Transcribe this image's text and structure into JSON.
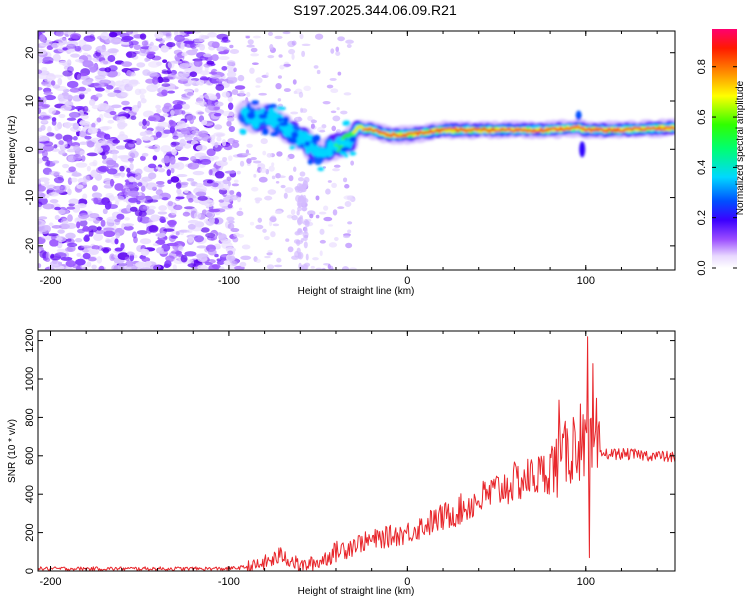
{
  "figure_title": "S197.2025.344.06.09.R21",
  "chart_data": [
    {
      "type": "heatmap",
      "title": "S197.2025.344.06.09.R21",
      "xlabel": "Height of straight line (km)",
      "ylabel": "Frequency (Hz)",
      "xlim": [
        -207,
        150
      ],
      "ylim": [
        -25,
        24.5
      ],
      "xticks": [
        -200,
        -100,
        0,
        100
      ],
      "yticks": [
        -20,
        -10,
        0,
        10,
        20
      ],
      "xtick_labels": [
        "-200",
        "-100",
        "0",
        "100"
      ],
      "ytick_labels": [
        "-20",
        "-10",
        "0",
        "10",
        "20"
      ],
      "grid": false,
      "colorbar": {
        "label": "Normalized spectral amplitude",
        "range": [
          0,
          0.95
        ],
        "ticks": [
          0,
          0.2,
          0.4,
          0.6,
          0.8
        ],
        "tick_labels": [
          "0.0",
          "0.2",
          "0.4",
          "0.6",
          "0.8"
        ]
      },
      "ridge": {
        "description_points_km_hz": [
          [
            -92,
            7.5
          ],
          [
            -85,
            6.0
          ],
          [
            -78,
            7.0
          ],
          [
            -72,
            5.5
          ],
          [
            -65,
            3.5
          ],
          [
            -58,
            2.0
          ],
          [
            -50,
            -1.0
          ],
          [
            -45,
            0.0
          ],
          [
            -38,
            1.0
          ],
          [
            -32,
            2.0
          ],
          [
            -28,
            4.5
          ],
          [
            -20,
            4.0
          ],
          [
            -10,
            3.0
          ],
          [
            0,
            3.0
          ],
          [
            10,
            3.5
          ],
          [
            20,
            4.0
          ],
          [
            40,
            4.0
          ],
          [
            60,
            4.0
          ],
          [
            80,
            4.0
          ],
          [
            95,
            4.5
          ],
          [
            100,
            4.0
          ],
          [
            120,
            4.0
          ],
          [
            150,
            4.5
          ]
        ]
      },
      "noise_region_km": [
        -207,
        -90
      ]
    },
    {
      "type": "line",
      "xlabel": "Height of straight line (km)",
      "ylabel": "SNR (10 * v/v)",
      "xlim": [
        -207,
        150
      ],
      "ylim": [
        0,
        1250
      ],
      "xticks": [
        -200,
        -100,
        0,
        100
      ],
      "yticks": [
        0,
        200,
        400,
        600,
        800,
        1000,
        1200
      ],
      "xtick_labels": [
        "-200",
        "-100",
        "0",
        "100"
      ],
      "ytick_labels": [
        "0",
        "200",
        "400",
        "600",
        "800",
        "1000",
        "1200"
      ],
      "grid": false,
      "series": [
        {
          "name": "SNR",
          "color": "#e8262b",
          "control_points": {
            "x": [
              -207,
              -100,
              -85,
              -75,
              -70,
              -60,
              -50,
              -40,
              -30,
              -20,
              -10,
              0,
              10,
              20,
              30,
              40,
              50,
              60,
              70,
              80,
              85,
              90,
              95,
              100,
              103,
              105,
              110,
              120,
              130,
              140,
              150
            ],
            "y": [
              12,
              12,
              25,
              60,
              85,
              25,
              45,
              100,
              140,
              160,
              180,
              200,
              240,
              280,
              320,
              370,
              420,
              460,
              490,
              520,
              560,
              620,
              640,
              650,
              620,
              600,
              610,
              610,
              605,
              600,
              590
            ]
          },
          "spikes": [
            {
              "x": 85,
              "y": 890
            },
            {
              "x": 93,
              "y": 800
            },
            {
              "x": 97,
              "y": 870
            },
            {
              "x": 101,
              "y": 1220
            },
            {
              "x": 102,
              "y": 70
            },
            {
              "x": 104,
              "y": 1080
            },
            {
              "x": 106,
              "y": 900
            }
          ]
        }
      ]
    }
  ]
}
